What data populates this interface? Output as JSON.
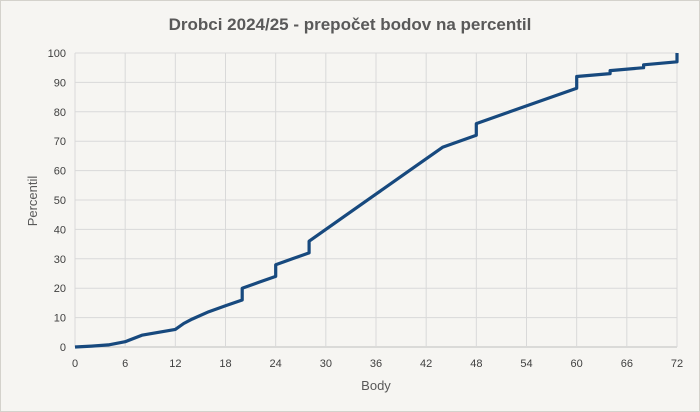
{
  "chart_data": {
    "type": "line",
    "title": "Drobci 2024/25 - prepočet bodov na percentil",
    "xlabel": "Body",
    "ylabel": "Percentil",
    "xlim": [
      0,
      72
    ],
    "ylim": [
      0,
      100
    ],
    "xticks": [
      0,
      6,
      12,
      18,
      24,
      30,
      36,
      42,
      48,
      54,
      60,
      66,
      72
    ],
    "yticks": [
      0,
      10,
      20,
      30,
      40,
      50,
      60,
      70,
      80,
      90,
      100
    ],
    "grid": true,
    "legend": "none",
    "line_color": "#17497e",
    "series": [
      {
        "x": [
          0,
          2,
          4,
          6,
          8,
          10,
          12,
          13,
          14,
          16,
          18,
          20,
          20,
          22,
          24,
          24,
          26,
          28,
          28,
          32,
          36,
          40,
          44,
          48,
          48,
          52,
          56,
          60,
          60,
          64,
          64,
          68,
          68,
          72,
          72
        ],
        "y": [
          0,
          0.3,
          0.7,
          1.8,
          4,
          5,
          6,
          8,
          9.5,
          12,
          14,
          16,
          20,
          22,
          24,
          28,
          30,
          32,
          36,
          44,
          52,
          60,
          68,
          72,
          76,
          80,
          84,
          88,
          92,
          93,
          94,
          95,
          96,
          97,
          100
        ]
      }
    ]
  }
}
